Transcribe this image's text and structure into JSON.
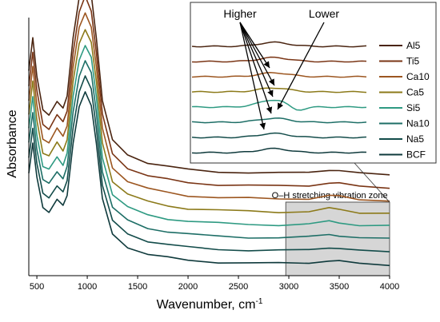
{
  "chart_data": {
    "type": "line",
    "title": "",
    "xlabel": "Wavenumber, cm",
    "xlabel_superscript": "-1",
    "ylabel": "Absorbance",
    "xlim": [
      420,
      4000
    ],
    "xticks": [
      500,
      1000,
      1500,
      2000,
      2500,
      3000,
      3500,
      4000
    ],
    "y_tick_labels": false,
    "grid": false,
    "legend_placement": "top-right (inside inset)",
    "annotations": {
      "higher": "Higher",
      "lower": "Lower",
      "zone": "O–H stretching vibration zone"
    },
    "zone_range": [
      2970,
      4000
    ],
    "series": [
      {
        "name": "Al5",
        "color": "#4a2410"
      },
      {
        "name": "Ti5",
        "color": "#7a3515"
      },
      {
        "name": "Ca10",
        "color": "#9c5620"
      },
      {
        "name": "Ca5",
        "color": "#8c7a1a"
      },
      {
        "name": "Si5",
        "color": "#2e9a82"
      },
      {
        "name": "Na10",
        "color": "#1d6e66"
      },
      {
        "name": "Na5",
        "color": "#134c4a"
      },
      {
        "name": "BCF",
        "color": "#0f3a3c"
      }
    ],
    "x": [
      420,
      460,
      500,
      560,
      620,
      700,
      760,
      800,
      860,
      920,
      980,
      1040,
      1090,
      1150,
      1250,
      1400,
      1600,
      1800,
      2000,
      2300,
      2600,
      2900,
      3200,
      3400,
      3500,
      3700,
      4000
    ],
    "shape": [
      0.55,
      0.72,
      0.52,
      0.35,
      0.33,
      0.4,
      0.36,
      0.42,
      0.72,
      0.92,
      1.0,
      0.93,
      0.72,
      0.4,
      0.2,
      0.13,
      0.09,
      0.07,
      0.055,
      0.045,
      0.04,
      0.037,
      0.04,
      0.055,
      0.05,
      0.035,
      0.03
    ]
  }
}
